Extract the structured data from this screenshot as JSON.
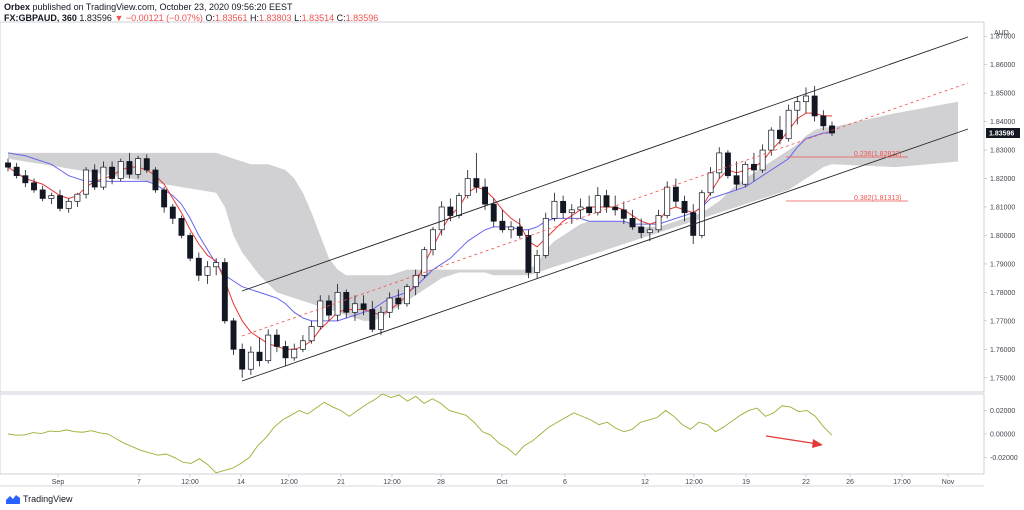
{
  "header": {
    "author": "Orbex",
    "published_text": "published on TradingView.com, October 23, 2020 09:56:20 EEST",
    "symbol": "FX:GBPAUD, 360",
    "last": "1.83596",
    "change": "−0.00121 (−0.07%)",
    "open_label": "O:",
    "open": "1.83561",
    "high_label": "H:",
    "high": "1.83803",
    "low_label": "L:",
    "low": "1.83514",
    "close_label": "C:",
    "close": "1.83596"
  },
  "branding": {
    "logo_text": "TradingView"
  },
  "colors": {
    "bull": "#ffffff",
    "bear": "#131722",
    "wick": "#131722",
    "tenkan": "#e53935",
    "kijun": "#6666ee",
    "cloud": "#c9c9cd",
    "channel": "#222222",
    "midline": "#ef5350",
    "fib": "#ef5350",
    "oscillator": "#9ab034",
    "arrow": "#e53935",
    "price_tag": "#131722"
  },
  "chart_data": [
    {
      "type": "candlestick",
      "currency_label": "AUD",
      "ylim": [
        1.745,
        1.875
      ],
      "y_ticks": [
        "1.87000",
        "1.86000",
        "1.85000",
        "1.84000",
        "1.83000",
        "1.82000",
        "1.81000",
        "1.80000",
        "1.79000",
        "1.78000",
        "1.77000",
        "1.76000",
        "1.75000"
      ],
      "last_price_label": "1.83596",
      "x_tick_labels": [
        "Sep",
        "7",
        "12:00",
        "14",
        "12:00",
        "21",
        "12:00",
        "28",
        "Oct",
        "6",
        "12",
        "12:00",
        "19",
        "22",
        "26",
        "17:00",
        "Nov"
      ],
      "candles_ohlc": [
        [
          1.8255,
          1.827,
          1.8225,
          1.824
        ],
        [
          1.824,
          1.8255,
          1.82,
          1.821
        ],
        [
          1.821,
          1.823,
          1.817,
          1.8185
        ],
        [
          1.8185,
          1.82,
          1.815,
          1.816
        ],
        [
          1.816,
          1.8175,
          1.812,
          1.813
        ],
        [
          1.813,
          1.815,
          1.811,
          1.814
        ],
        [
          1.814,
          1.816,
          1.8085,
          1.8095
        ],
        [
          1.8095,
          1.813,
          1.808,
          1.812
        ],
        [
          1.812,
          1.815,
          1.81,
          1.8145
        ],
        [
          1.8145,
          1.824,
          1.813,
          1.823
        ],
        [
          1.823,
          1.825,
          1.816,
          1.817
        ],
        [
          1.817,
          1.826,
          1.816,
          1.824
        ],
        [
          1.824,
          1.826,
          1.818,
          1.82
        ],
        [
          1.82,
          1.827,
          1.819,
          1.826
        ],
        [
          1.826,
          1.829,
          1.82,
          1.8215
        ],
        [
          1.8215,
          1.828,
          1.82,
          1.827
        ],
        [
          1.827,
          1.8285,
          1.822,
          1.823
        ],
        [
          1.823,
          1.824,
          1.815,
          1.816
        ],
        [
          1.816,
          1.817,
          1.808,
          1.81
        ],
        [
          1.81,
          1.811,
          1.804,
          1.806
        ],
        [
          1.806,
          1.807,
          1.799,
          1.8
        ],
        [
          1.8,
          1.801,
          1.791,
          1.792
        ],
        [
          1.792,
          1.794,
          1.784,
          1.786
        ],
        [
          1.786,
          1.791,
          1.783,
          1.789
        ],
        [
          1.789,
          1.792,
          1.786,
          1.7905
        ],
        [
          1.7905,
          1.792,
          1.769,
          1.77
        ],
        [
          1.77,
          1.771,
          1.758,
          1.76
        ],
        [
          1.76,
          1.762,
          1.75,
          1.753
        ],
        [
          1.753,
          1.761,
          1.751,
          1.759
        ],
        [
          1.759,
          1.764,
          1.754,
          1.756
        ],
        [
          1.756,
          1.767,
          1.755,
          1.765
        ],
        [
          1.765,
          1.767,
          1.759,
          1.761
        ],
        [
          1.761,
          1.763,
          1.754,
          1.757
        ],
        [
          1.757,
          1.762,
          1.756,
          1.76
        ],
        [
          1.76,
          1.765,
          1.759,
          1.763
        ],
        [
          1.763,
          1.77,
          1.762,
          1.768
        ],
        [
          1.768,
          1.779,
          1.767,
          1.777
        ],
        [
          1.777,
          1.779,
          1.77,
          1.772
        ],
        [
          1.772,
          1.783,
          1.77,
          1.78
        ],
        [
          1.78,
          1.781,
          1.771,
          1.773
        ],
        [
          1.773,
          1.779,
          1.77,
          1.776
        ],
        [
          1.776,
          1.779,
          1.772,
          1.774
        ],
        [
          1.774,
          1.777,
          1.766,
          1.767
        ],
        [
          1.767,
          1.775,
          1.765,
          1.773
        ],
        [
          1.773,
          1.78,
          1.771,
          1.778
        ],
        [
          1.778,
          1.781,
          1.774,
          1.776
        ],
        [
          1.776,
          1.783,
          1.775,
          1.782
        ],
        [
          1.782,
          1.788,
          1.779,
          1.786
        ],
        [
          1.786,
          1.796,
          1.785,
          1.795
        ],
        [
          1.795,
          1.803,
          1.793,
          1.802
        ],
        [
          1.802,
          1.812,
          1.8,
          1.81
        ],
        [
          1.81,
          1.813,
          1.805,
          1.807
        ],
        [
          1.807,
          1.815,
          1.806,
          1.814
        ],
        [
          1.814,
          1.823,
          1.813,
          1.82
        ],
        [
          1.82,
          1.829,
          1.815,
          1.817
        ],
        [
          1.817,
          1.82,
          1.809,
          1.811
        ],
        [
          1.811,
          1.813,
          1.803,
          1.805
        ],
        [
          1.805,
          1.809,
          1.801,
          1.802
        ],
        [
          1.802,
          1.805,
          1.799,
          1.803
        ],
        [
          1.803,
          1.806,
          1.799,
          1.8
        ],
        [
          1.8,
          1.802,
          1.785,
          1.787
        ],
        [
          1.787,
          1.795,
          1.785,
          1.793
        ],
        [
          1.793,
          1.808,
          1.792,
          1.806
        ],
        [
          1.806,
          1.815,
          1.805,
          1.812
        ],
        [
          1.812,
          1.814,
          1.806,
          1.808
        ],
        [
          1.808,
          1.811,
          1.804,
          1.809
        ],
        [
          1.809,
          1.813,
          1.806,
          1.81
        ],
        [
          1.81,
          1.814,
          1.807,
          1.808
        ],
        [
          1.808,
          1.817,
          1.807,
          1.814
        ],
        [
          1.814,
          1.816,
          1.808,
          1.81
        ],
        [
          1.81,
          1.814,
          1.807,
          1.809
        ],
        [
          1.809,
          1.812,
          1.804,
          1.806
        ],
        [
          1.806,
          1.809,
          1.802,
          1.803
        ],
        [
          1.803,
          1.806,
          1.799,
          1.801
        ],
        [
          1.801,
          1.804,
          1.798,
          1.802
        ],
        [
          1.802,
          1.809,
          1.801,
          1.807
        ],
        [
          1.807,
          1.819,
          1.806,
          1.817
        ],
        [
          1.817,
          1.82,
          1.81,
          1.812
        ],
        [
          1.812,
          1.814,
          1.805,
          1.808
        ],
        [
          1.808,
          1.811,
          1.797,
          1.8
        ],
        [
          1.8,
          1.816,
          1.799,
          1.815
        ],
        [
          1.815,
          1.824,
          1.814,
          1.822
        ],
        [
          1.822,
          1.831,
          1.82,
          1.829
        ],
        [
          1.829,
          1.83,
          1.82,
          1.821
        ],
        [
          1.821,
          1.826,
          1.816,
          1.818
        ],
        [
          1.818,
          1.826,
          1.817,
          1.825
        ],
        [
          1.825,
          1.829,
          1.819,
          1.823
        ],
        [
          1.823,
          1.832,
          1.822,
          1.83
        ],
        [
          1.83,
          1.838,
          1.828,
          1.837
        ],
        [
          1.837,
          1.842,
          1.832,
          1.834
        ],
        [
          1.834,
          1.846,
          1.833,
          1.844
        ],
        [
          1.844,
          1.849,
          1.839,
          1.847
        ],
        [
          1.847,
          1.852,
          1.843,
          1.849
        ],
        [
          1.849,
          1.8525,
          1.84,
          1.842
        ],
        [
          1.842,
          1.844,
          1.837,
          1.8385
        ],
        [
          1.8385,
          1.84,
          1.835,
          1.836
        ]
      ],
      "tenkan": [
        1.824,
        1.822,
        1.82,
        1.819,
        1.818,
        1.816,
        1.814,
        1.813,
        1.814,
        1.817,
        1.819,
        1.82,
        1.821,
        1.823,
        1.824,
        1.824,
        1.823,
        1.821,
        1.818,
        1.813,
        1.808,
        1.802,
        1.797,
        1.793,
        1.791,
        1.784,
        1.776,
        1.77,
        1.766,
        1.764,
        1.762,
        1.761,
        1.76,
        1.76,
        1.761,
        1.763,
        1.767,
        1.77,
        1.773,
        1.774,
        1.774,
        1.774,
        1.773,
        1.772,
        1.774,
        1.776,
        1.779,
        1.783,
        1.79,
        1.796,
        1.802,
        1.807,
        1.81,
        1.815,
        1.817,
        1.816,
        1.813,
        1.809,
        1.806,
        1.804,
        1.798,
        1.796,
        1.799,
        1.802,
        1.805,
        1.807,
        1.809,
        1.81,
        1.81,
        1.81,
        1.81,
        1.809,
        1.807,
        1.805,
        1.804,
        1.805,
        1.809,
        1.81,
        1.809,
        1.808,
        1.81,
        1.815,
        1.82,
        1.823,
        1.822,
        1.823,
        1.824,
        1.826,
        1.83,
        1.833,
        1.837,
        1.841,
        1.843,
        1.843,
        1.842,
        1.842
      ],
      "kijun": [
        1.829,
        1.8285,
        1.828,
        1.827,
        1.826,
        1.825,
        1.823,
        1.821,
        1.82,
        1.819,
        1.819,
        1.819,
        1.819,
        1.819,
        1.819,
        1.819,
        1.819,
        1.818,
        1.816,
        1.814,
        1.811,
        1.806,
        1.8,
        1.795,
        1.79,
        1.786,
        1.784,
        1.782,
        1.781,
        1.78,
        1.779,
        1.778,
        1.776,
        1.773,
        1.771,
        1.77,
        1.77,
        1.77,
        1.77,
        1.771,
        1.772,
        1.773,
        1.774,
        1.776,
        1.778,
        1.779,
        1.78,
        1.782,
        1.785,
        1.788,
        1.79,
        1.792,
        1.795,
        1.798,
        1.8,
        1.802,
        1.803,
        1.803,
        1.803,
        1.802,
        1.802,
        1.803,
        1.805,
        1.806,
        1.806,
        1.806,
        1.806,
        1.805,
        1.805,
        1.805,
        1.805,
        1.805,
        1.804,
        1.804,
        1.804,
        1.804,
        1.805,
        1.806,
        1.807,
        1.808,
        1.81,
        1.813,
        1.814,
        1.815,
        1.816,
        1.817,
        1.819,
        1.821,
        1.823,
        1.825,
        1.827,
        1.831,
        1.834,
        1.835,
        1.836,
        1.836
      ],
      "cloud_top": [
        1.829,
        1.829,
        1.829,
        1.829,
        1.829,
        1.829,
        1.829,
        1.829,
        1.829,
        1.829,
        1.829,
        1.829,
        1.829,
        1.829,
        1.829,
        1.829,
        1.829,
        1.829,
        1.829,
        1.829,
        1.829,
        1.829,
        1.829,
        1.829,
        1.829,
        1.828,
        1.827,
        1.826,
        1.825,
        1.825,
        1.825,
        1.824,
        1.823,
        1.82,
        1.815,
        1.808,
        1.8,
        1.792,
        1.788,
        1.786,
        1.786,
        1.786,
        1.786,
        1.786,
        1.786,
        1.787,
        1.788,
        1.788,
        1.788,
        1.788,
        1.788,
        1.788,
        1.788,
        1.788,
        1.788,
        1.788,
        1.788,
        1.788,
        1.788,
        1.788,
        1.788,
        1.79,
        1.795,
        1.798,
        1.8,
        1.802,
        1.804,
        1.805,
        1.805,
        1.805,
        1.805,
        1.805,
        1.804,
        1.803,
        1.803,
        1.803,
        1.804,
        1.805,
        1.806,
        1.807,
        1.808,
        1.81,
        1.812,
        1.815,
        1.818,
        1.82,
        1.822,
        1.824,
        1.826,
        1.828,
        1.83,
        1.832,
        1.835,
        1.837,
        1.838,
        1.838
      ],
      "cloud_bottom": [
        1.827,
        1.8265,
        1.826,
        1.8255,
        1.825,
        1.8245,
        1.824,
        1.8235,
        1.823,
        1.8225,
        1.822,
        1.8215,
        1.821,
        1.8205,
        1.82,
        1.8195,
        1.819,
        1.8185,
        1.818,
        1.8175,
        1.817,
        1.8165,
        1.816,
        1.8155,
        1.815,
        1.81,
        1.8,
        1.794,
        1.79,
        1.786,
        1.783,
        1.78,
        1.779,
        1.778,
        1.777,
        1.776,
        1.775,
        1.774,
        1.773,
        1.772,
        1.771,
        1.77,
        1.77,
        1.771,
        1.773,
        1.775,
        1.777,
        1.779,
        1.781,
        1.783,
        1.785,
        1.786,
        1.787,
        1.787,
        1.787,
        1.787,
        1.786,
        1.786,
        1.786,
        1.786,
        1.786,
        1.787,
        1.788,
        1.789,
        1.79,
        1.791,
        1.792,
        1.793,
        1.794,
        1.795,
        1.796,
        1.797,
        1.798,
        1.799,
        1.8,
        1.801,
        1.802,
        1.803,
        1.804,
        1.805,
        1.806,
        1.807,
        1.808,
        1.809,
        1.81,
        1.811,
        1.812,
        1.813,
        1.814,
        1.815,
        1.816,
        1.818,
        1.82,
        1.822,
        1.824,
        1.825
      ]
    },
    {
      "type": "line",
      "y_ticks": [
        "0.02000",
        "0.00000",
        "-0.02000"
      ],
      "ylim": [
        -0.034,
        0.034
      ],
      "values": [
        0.0,
        -0.001,
        -0.0008,
        0.0012,
        0.0004,
        0.0025,
        0.002,
        0.0035,
        0.002,
        0.0015,
        0.0028,
        0.001,
        0.0,
        -0.004,
        -0.008,
        -0.011,
        -0.014,
        -0.016,
        -0.018,
        -0.017,
        -0.02,
        -0.024,
        -0.025,
        -0.021,
        -0.026,
        -0.033,
        -0.031,
        -0.029,
        -0.025,
        -0.02,
        -0.01,
        -0.003,
        0.006,
        0.012,
        0.016,
        0.02,
        0.017,
        0.022,
        0.027,
        0.023,
        0.02,
        0.015,
        0.02,
        0.025,
        0.029,
        0.034,
        0.031,
        0.033,
        0.028,
        0.032,
        0.026,
        0.03,
        0.026,
        0.02,
        0.018,
        0.016,
        0.01,
        0.002,
        -0.001,
        -0.008,
        -0.012,
        -0.018,
        -0.01,
        -0.006,
        0.0,
        0.006,
        0.01,
        0.014,
        0.018,
        0.015,
        0.012,
        0.008,
        0.01,
        0.005,
        0.002,
        0.004,
        0.01,
        0.012,
        0.014,
        0.02,
        0.015,
        0.008,
        0.004,
        0.01,
        0.008,
        0.002,
        0.006,
        0.011,
        0.016,
        0.02,
        0.022,
        0.015,
        0.018,
        0.024,
        0.023,
        0.019,
        0.02,
        0.015,
        0.006,
        -0.001
      ]
    }
  ]
}
